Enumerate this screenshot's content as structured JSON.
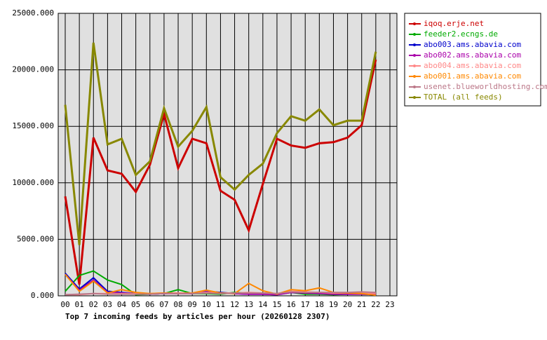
{
  "chart_data": {
    "type": "line",
    "title": "Top 7 incoming feeds by articles per hour (20260128 2307)",
    "categories": [
      "00",
      "01",
      "02",
      "03",
      "04",
      "05",
      "06",
      "07",
      "08",
      "09",
      "10",
      "11",
      "12",
      "13",
      "14",
      "15",
      "16",
      "17",
      "18",
      "19",
      "20",
      "21",
      "22",
      "23"
    ],
    "ylim": [
      0,
      25000
    ],
    "yticks": [
      {
        "value": 0,
        "label": "0.000"
      },
      {
        "value": 5000,
        "label": "5000.000"
      },
      {
        "value": 10000,
        "label": "10000.000"
      },
      {
        "value": 15000,
        "label": "15000.000"
      },
      {
        "value": 20000,
        "label": "20000.000"
      },
      {
        "value": 25000,
        "label": "25000.000"
      }
    ],
    "grid": true,
    "legend": "outside-right",
    "series": [
      {
        "name": "iqoq.erje.net",
        "color": "#cc0000",
        "values": [
          8800,
          1000,
          14000,
          11100,
          10800,
          9200,
          11600,
          16100,
          11300,
          13900,
          13500,
          9300,
          8500,
          5800,
          9900,
          13900,
          13300,
          13100,
          13500,
          13600,
          14000,
          15100,
          20900,
          null
        ]
      },
      {
        "name": "feeder2.ecngs.de",
        "color": "#00aa00",
        "values": [
          400,
          1800,
          2200,
          1400,
          1000,
          100,
          150,
          200,
          550,
          200,
          200,
          150,
          300,
          250,
          250,
          150,
          300,
          150,
          150,
          100,
          150,
          250,
          300,
          null
        ]
      },
      {
        "name": "abo003.ams.abavia.com",
        "color": "#0000cc",
        "values": [
          2000,
          600,
          1600,
          400,
          300,
          200,
          150,
          200,
          250,
          200,
          400,
          300,
          200,
          150,
          150,
          100,
          300,
          250,
          200,
          150,
          150,
          150,
          100,
          null
        ]
      },
      {
        "name": "abo002.ams.abavia.com",
        "color": "#aa00aa",
        "values": [
          1900,
          500,
          1400,
          300,
          250,
          200,
          150,
          200,
          200,
          200,
          350,
          250,
          200,
          150,
          150,
          100,
          300,
          250,
          200,
          150,
          150,
          150,
          100,
          null
        ]
      },
      {
        "name": "abo004.ams.abavia.com",
        "color": "#ff8888",
        "values": [
          100,
          100,
          200,
          200,
          200,
          200,
          200,
          250,
          250,
          250,
          300,
          250,
          250,
          300,
          250,
          200,
          400,
          350,
          300,
          250,
          250,
          300,
          200,
          null
        ]
      },
      {
        "name": "abo001.ams.abavia.com",
        "color": "#ff8800",
        "values": [
          1900,
          400,
          1300,
          250,
          550,
          300,
          200,
          250,
          200,
          250,
          500,
          250,
          200,
          1100,
          450,
          150,
          550,
          450,
          700,
          300,
          250,
          200,
          50,
          null
        ]
      },
      {
        "name": "usenet.blueworldhosting.com",
        "color": "#bb7788",
        "values": [
          100,
          150,
          200,
          150,
          150,
          150,
          150,
          200,
          200,
          200,
          250,
          200,
          250,
          250,
          250,
          200,
          350,
          300,
          300,
          300,
          300,
          350,
          300,
          null
        ]
      },
      {
        "name": "TOTAL (all feeds)",
        "color": "#888800",
        "values": [
          16900,
          4500,
          22400,
          13400,
          13900,
          10700,
          11900,
          16600,
          13200,
          14600,
          16700,
          10500,
          9400,
          10700,
          11700,
          14400,
          15900,
          15500,
          16500,
          15100,
          15500,
          15500,
          21600,
          null
        ]
      }
    ]
  }
}
